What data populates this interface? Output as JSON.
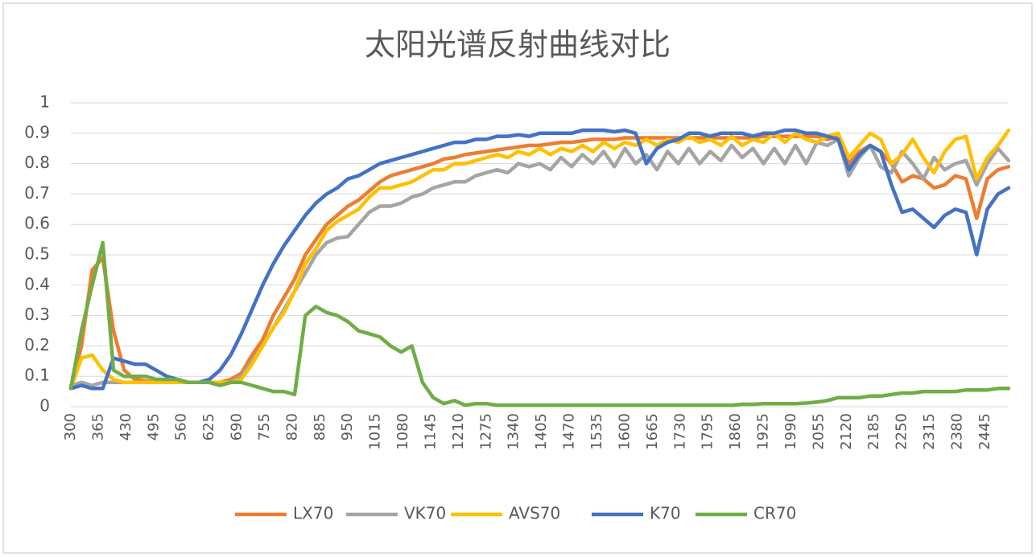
{
  "chart_data": {
    "type": "line",
    "title": "太阳光谱反射曲线对比",
    "x": [
      300,
      325,
      350,
      375,
      400,
      425,
      450,
      475,
      500,
      525,
      550,
      575,
      600,
      625,
      650,
      675,
      700,
      725,
      750,
      775,
      800,
      825,
      850,
      875,
      900,
      925,
      950,
      975,
      1000,
      1025,
      1050,
      1075,
      1100,
      1125,
      1150,
      1175,
      1200,
      1225,
      1250,
      1275,
      1300,
      1325,
      1350,
      1375,
      1400,
      1425,
      1450,
      1475,
      1500,
      1525,
      1550,
      1575,
      1600,
      1625,
      1650,
      1675,
      1700,
      1725,
      1750,
      1775,
      1800,
      1825,
      1850,
      1875,
      1900,
      1925,
      1950,
      1975,
      2000,
      2025,
      2050,
      2075,
      2100,
      2125,
      2150,
      2175,
      2200,
      2225,
      2250,
      2275,
      2300,
      2325,
      2350,
      2375,
      2400,
      2425,
      2450,
      2475,
      2500
    ],
    "xlim": [
      300,
      2500
    ],
    "xticks": [
      300,
      365,
      430,
      495,
      560,
      625,
      690,
      755,
      820,
      885,
      950,
      1015,
      1080,
      1145,
      1210,
      1275,
      1340,
      1405,
      1470,
      1535,
      1600,
      1665,
      1730,
      1795,
      1860,
      1925,
      1990,
      2055,
      2120,
      2185,
      2250,
      2315,
      2380,
      2445
    ],
    "ylim": [
      0,
      1
    ],
    "yticks": [
      0,
      0.1,
      0.2,
      0.3,
      0.4,
      0.5,
      0.6,
      0.7,
      0.8,
      0.9,
      1
    ],
    "grid": true,
    "legend": "bottom",
    "series": [
      {
        "name": "LX70",
        "color": "#ED7D31",
        "values": [
          0.06,
          0.2,
          0.45,
          0.49,
          0.25,
          0.12,
          0.09,
          0.085,
          0.08,
          0.08,
          0.08,
          0.08,
          0.08,
          0.08,
          0.08,
          0.09,
          0.11,
          0.17,
          0.22,
          0.3,
          0.36,
          0.42,
          0.5,
          0.55,
          0.6,
          0.63,
          0.66,
          0.68,
          0.71,
          0.74,
          0.76,
          0.77,
          0.78,
          0.79,
          0.8,
          0.815,
          0.82,
          0.83,
          0.835,
          0.84,
          0.845,
          0.85,
          0.855,
          0.86,
          0.86,
          0.865,
          0.87,
          0.87,
          0.875,
          0.88,
          0.88,
          0.88,
          0.885,
          0.885,
          0.885,
          0.885,
          0.885,
          0.885,
          0.885,
          0.885,
          0.885,
          0.885,
          0.885,
          0.885,
          0.885,
          0.89,
          0.89,
          0.89,
          0.89,
          0.89,
          0.89,
          0.88,
          0.89,
          0.8,
          0.84,
          0.86,
          0.84,
          0.8,
          0.74,
          0.76,
          0.75,
          0.72,
          0.73,
          0.76,
          0.75,
          0.62,
          0.75,
          0.78,
          0.79
        ]
      },
      {
        "name": "VK70",
        "color": "#A5A5A5",
        "values": [
          0.07,
          0.08,
          0.07,
          0.08,
          0.08,
          0.08,
          0.08,
          0.08,
          0.08,
          0.08,
          0.08,
          0.08,
          0.08,
          0.08,
          0.07,
          0.08,
          0.1,
          0.15,
          0.2,
          0.26,
          0.32,
          0.38,
          0.44,
          0.5,
          0.54,
          0.555,
          0.56,
          0.6,
          0.64,
          0.66,
          0.66,
          0.67,
          0.69,
          0.7,
          0.72,
          0.73,
          0.74,
          0.74,
          0.76,
          0.77,
          0.78,
          0.77,
          0.8,
          0.79,
          0.8,
          0.78,
          0.82,
          0.79,
          0.83,
          0.8,
          0.84,
          0.79,
          0.85,
          0.8,
          0.83,
          0.78,
          0.84,
          0.8,
          0.85,
          0.8,
          0.84,
          0.81,
          0.86,
          0.82,
          0.85,
          0.8,
          0.85,
          0.8,
          0.86,
          0.8,
          0.87,
          0.86,
          0.88,
          0.76,
          0.82,
          0.86,
          0.79,
          0.77,
          0.84,
          0.8,
          0.75,
          0.82,
          0.78,
          0.8,
          0.81,
          0.73,
          0.8,
          0.85,
          0.81
        ]
      },
      {
        "name": "AVS70",
        "color": "#FFC000",
        "values": [
          0.06,
          0.16,
          0.17,
          0.12,
          0.09,
          0.08,
          0.08,
          0.08,
          0.08,
          0.08,
          0.08,
          0.08,
          0.08,
          0.08,
          0.08,
          0.08,
          0.09,
          0.14,
          0.2,
          0.26,
          0.31,
          0.38,
          0.47,
          0.52,
          0.58,
          0.61,
          0.63,
          0.65,
          0.69,
          0.72,
          0.72,
          0.73,
          0.74,
          0.76,
          0.78,
          0.78,
          0.8,
          0.8,
          0.81,
          0.82,
          0.83,
          0.82,
          0.84,
          0.83,
          0.85,
          0.83,
          0.85,
          0.84,
          0.86,
          0.84,
          0.87,
          0.85,
          0.87,
          0.86,
          0.88,
          0.86,
          0.88,
          0.87,
          0.89,
          0.87,
          0.88,
          0.86,
          0.89,
          0.86,
          0.88,
          0.87,
          0.9,
          0.87,
          0.9,
          0.88,
          0.87,
          0.89,
          0.9,
          0.82,
          0.86,
          0.9,
          0.88,
          0.8,
          0.83,
          0.88,
          0.82,
          0.77,
          0.84,
          0.88,
          0.89,
          0.75,
          0.82,
          0.86,
          0.91
        ]
      },
      {
        "name": "K70",
        "color": "#4472C4",
        "values": [
          0.06,
          0.07,
          0.06,
          0.06,
          0.16,
          0.15,
          0.14,
          0.14,
          0.12,
          0.1,
          0.09,
          0.08,
          0.08,
          0.09,
          0.12,
          0.17,
          0.24,
          0.32,
          0.4,
          0.47,
          0.53,
          0.58,
          0.63,
          0.67,
          0.7,
          0.72,
          0.75,
          0.76,
          0.78,
          0.8,
          0.81,
          0.82,
          0.83,
          0.84,
          0.85,
          0.86,
          0.87,
          0.87,
          0.88,
          0.88,
          0.89,
          0.89,
          0.895,
          0.89,
          0.9,
          0.9,
          0.9,
          0.9,
          0.91,
          0.91,
          0.91,
          0.905,
          0.91,
          0.9,
          0.8,
          0.85,
          0.87,
          0.88,
          0.9,
          0.9,
          0.89,
          0.9,
          0.9,
          0.9,
          0.89,
          0.9,
          0.9,
          0.91,
          0.91,
          0.9,
          0.9,
          0.89,
          0.88,
          0.78,
          0.83,
          0.86,
          0.84,
          0.73,
          0.64,
          0.65,
          0.62,
          0.59,
          0.63,
          0.65,
          0.64,
          0.5,
          0.65,
          0.7,
          0.72
        ]
      },
      {
        "name": "CR70",
        "color": "#70AD47",
        "values": [
          0.06,
          0.25,
          0.4,
          0.54,
          0.12,
          0.1,
          0.1,
          0.1,
          0.09,
          0.09,
          0.09,
          0.08,
          0.08,
          0.08,
          0.07,
          0.08,
          0.08,
          0.07,
          0.06,
          0.05,
          0.05,
          0.04,
          0.3,
          0.33,
          0.31,
          0.3,
          0.28,
          0.25,
          0.24,
          0.23,
          0.2,
          0.18,
          0.2,
          0.08,
          0.03,
          0.01,
          0.02,
          0.005,
          0.01,
          0.01,
          0.005,
          0.005,
          0.005,
          0.005,
          0.005,
          0.005,
          0.005,
          0.005,
          0.005,
          0.005,
          0.005,
          0.005,
          0.005,
          0.005,
          0.005,
          0.005,
          0.005,
          0.005,
          0.005,
          0.005,
          0.005,
          0.005,
          0.005,
          0.008,
          0.008,
          0.01,
          0.01,
          0.01,
          0.01,
          0.012,
          0.015,
          0.02,
          0.03,
          0.03,
          0.03,
          0.035,
          0.035,
          0.04,
          0.045,
          0.045,
          0.05,
          0.05,
          0.05,
          0.05,
          0.055,
          0.055,
          0.055,
          0.06,
          0.06
        ]
      }
    ]
  }
}
